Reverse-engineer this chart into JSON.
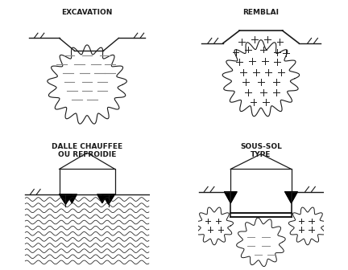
{
  "title_excavation": "EXCAVATION",
  "title_remblai": "REMBLAI",
  "title_dalle": "DALLE CHAUFFEE\nOU REFROIDIE",
  "title_sous_sol": "SOUS-SOL\nTYPE",
  "bg_color": "#ffffff",
  "line_color": "#1a1a1a",
  "font_family": "DejaVu Sans",
  "title_fontsize": 6.5,
  "label_fontsize": 6.5
}
